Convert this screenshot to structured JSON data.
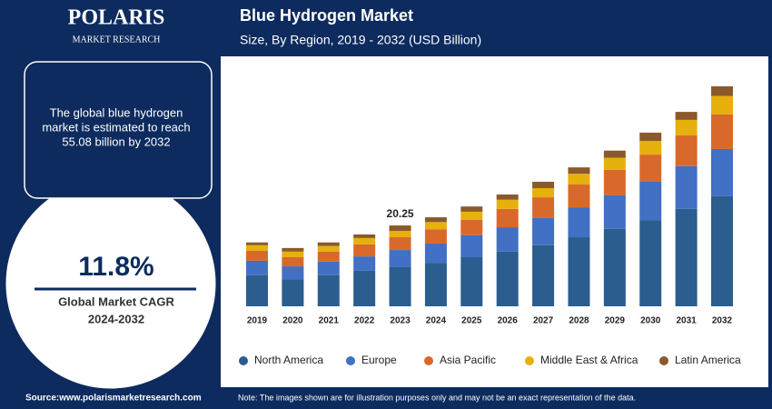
{
  "brand": {
    "name": "POLARIS",
    "tagline": "MARKET RESEARCH"
  },
  "sidebar": {
    "summary": [
      "The global blue hydrogen",
      "market is estimated to reach",
      "55.08 billion by 2032"
    ],
    "cagr": {
      "value": 11.8,
      "label": "11.8%"
    },
    "cagr_caption": "Global Market CAGR",
    "cagr_period": "2024-2032"
  },
  "chart_data": {
    "type": "stacked_bar",
    "title": "Blue Hydrogen Market",
    "subtitle": "Size, By Region, 2019 - 2032 (USD Billion)",
    "categories": [
      "2019",
      "2020",
      "2021",
      "2022",
      "2023",
      "2024",
      "2025",
      "2026",
      "2027",
      "2028",
      "2029",
      "2030",
      "2031",
      "2032"
    ],
    "series": [
      {
        "name": "North America",
        "color": "#2b5d8e",
        "values": [
          7.8,
          6.8,
          7.8,
          8.9,
          9.8,
          10.9,
          12.3,
          13.7,
          15.3,
          17.3,
          19.4,
          21.6,
          24.4,
          27.6
        ]
      },
      {
        "name": "Europe",
        "color": "#4170c4",
        "values": [
          3.6,
          3.2,
          3.4,
          3.6,
          4.3,
          4.8,
          5.5,
          6.1,
          6.8,
          7.5,
          8.4,
          9.6,
          10.7,
          11.8
        ]
      },
      {
        "name": "Asia Pacific",
        "color": "#d9692b",
        "values": [
          2.5,
          2.3,
          2.5,
          3.0,
          3.2,
          3.6,
          3.9,
          4.6,
          5.2,
          5.7,
          6.4,
          6.8,
          7.7,
          8.7
        ]
      },
      {
        "name": "Middle East & Africa",
        "color": "#e6b00d",
        "values": [
          1.4,
          1.4,
          1.4,
          1.6,
          1.6,
          1.8,
          2.0,
          2.3,
          2.3,
          2.7,
          3.0,
          3.4,
          3.9,
          4.6
        ]
      },
      {
        "name": "Latin America",
        "color": "#8a5a2c",
        "values": [
          0.7,
          0.9,
          0.9,
          0.9,
          1.35,
          1.2,
          1.3,
          1.3,
          1.6,
          1.6,
          1.8,
          2.1,
          2.0,
          2.4
        ]
      }
    ],
    "highlight": {
      "category": "2023",
      "total": 20.25
    }
  },
  "footer": {
    "source": "Source:www.polarismarketresearch.com",
    "note": "Note: The images shown are for illustration purposes only and may not be an exact representation of the data."
  }
}
